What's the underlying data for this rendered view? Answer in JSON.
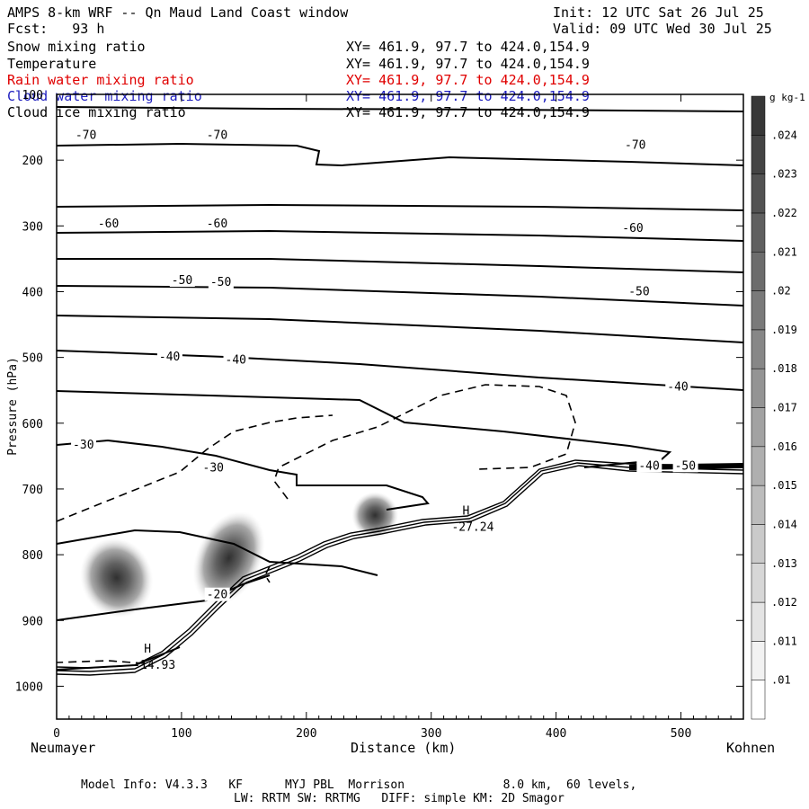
{
  "header": {
    "title": "AMPS 8-km WRF -- Qn Maud Land Coast window",
    "init": "Init: 12 UTC Sat 26 Jul 25",
    "forecast": "Fcst:   93 h",
    "valid": "Valid: 09 UTC Wed 30 Jul 25"
  },
  "fields": [
    {
      "label": "Snow mixing ratio",
      "xy": "XY= 461.9, 97.7 to 424.0,154.9",
      "color": "#000000"
    },
    {
      "label": "Temperature",
      "xy": "XY= 461.9, 97.7 to 424.0,154.9",
      "color": "#000000"
    },
    {
      "label": "Rain water mixing ratio",
      "xy": "XY= 461.9, 97.7 to 424.0,154.9",
      "color": "#e00000"
    },
    {
      "label": "Cloud water mixing ratio",
      "xy": "XY= 461.9, 97.7 to 424.0,154.9",
      "color": "#2020c0"
    },
    {
      "label": "Cloud ice mixing ratio",
      "xy": "XY= 461.9, 97.7 to 424.0,154.9",
      "color": "#000000"
    }
  ],
  "footer": {
    "line1": "Model Info: V4.3.3   KF      MYJ PBL  Morrison              8.0 km,  60 levels,",
    "line2": "LW: RRTM SW: RRTMG   DIFF: simple KM: 2D Smagor"
  },
  "chart_data": {
    "type": "cross-section",
    "xlabel": "Distance (km)",
    "ylabel": "Pressure (hPa)",
    "x_left_label": "Neumayer",
    "x_right_label": "Kohnen",
    "xlim": [
      0,
      550
    ],
    "ylim": [
      1050,
      100
    ],
    "x_ticks": [
      0,
      100,
      200,
      300,
      400,
      500
    ],
    "y_ticks": [
      100,
      200,
      300,
      400,
      500,
      600,
      700,
      800,
      900,
      1000
    ],
    "colorbar": {
      "unit": "g kg-1",
      "ticks": [
        ".01",
        ".011",
        ".012",
        ".013",
        ".014",
        ".015",
        ".016",
        ".017",
        ".018",
        ".019",
        ".02",
        ".021",
        ".022",
        ".023",
        ".024"
      ]
    },
    "temperature_labels": [
      {
        "text": "-70",
        "x": 15,
        "p": 162
      },
      {
        "text": "-70",
        "x": 120,
        "p": 162
      },
      {
        "text": "-70",
        "x": 455,
        "p": 177
      },
      {
        "text": "-60",
        "x": 33,
        "p": 297
      },
      {
        "text": "-60",
        "x": 120,
        "p": 297
      },
      {
        "text": "-60",
        "x": 453,
        "p": 304
      },
      {
        "text": "-50",
        "x": 92,
        "p": 383
      },
      {
        "text": "-50",
        "x": 123,
        "p": 386
      },
      {
        "text": "-50",
        "x": 458,
        "p": 400
      },
      {
        "text": "-40",
        "x": 82,
        "p": 499
      },
      {
        "text": "-40",
        "x": 135,
        "p": 504
      },
      {
        "text": "-40",
        "x": 489,
        "p": 545
      },
      {
        "text": "-40",
        "x": 466,
        "p": 665
      },
      {
        "text": "-50",
        "x": 495,
        "p": 665
      },
      {
        "text": "-30",
        "x": 13,
        "p": 633
      },
      {
        "text": "-30",
        "x": 117,
        "p": 668
      },
      {
        "text": "-20",
        "x": 120,
        "p": 861
      }
    ],
    "highs": [
      {
        "label": "H",
        "value": "-14.93",
        "x": 70,
        "p": 960
      },
      {
        "label": "H",
        "value": "-27.24",
        "x": 325,
        "p": 750
      }
    ],
    "mixing_ratio_blobs": [
      {
        "x": 48,
        "p": 835,
        "peak": 0.019
      },
      {
        "x": 138,
        "p": 805,
        "peak": 0.021
      },
      {
        "x": 255,
        "p": 740,
        "peak": 0.023
      }
    ]
  }
}
